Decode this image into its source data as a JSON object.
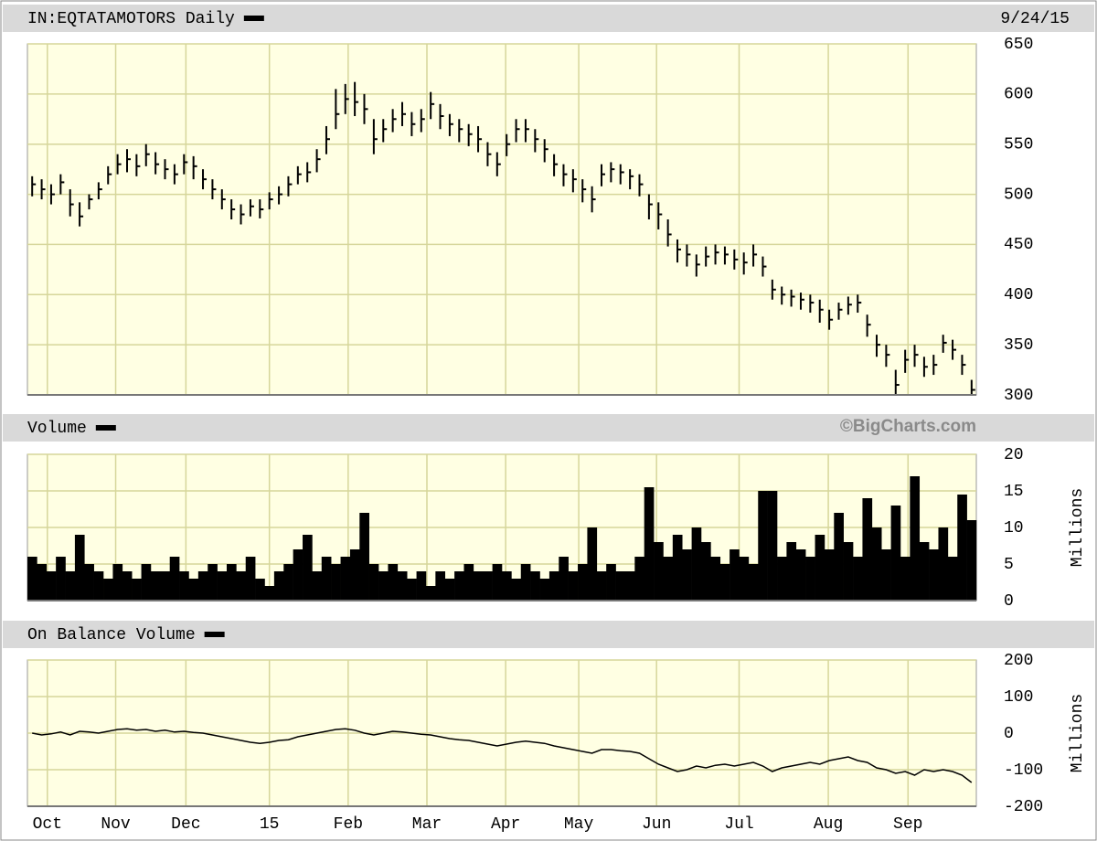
{
  "chart_data": [
    {
      "type": "hlc",
      "title": "IN:EQTATAMOTORS Daily",
      "date": "9/24/15",
      "color": "#000000",
      "grid": true,
      "ylim": [
        300,
        650
      ],
      "yticks": [
        300,
        350,
        400,
        450,
        500,
        550,
        600,
        650
      ],
      "high": [
        518,
        515,
        510,
        520,
        505,
        492,
        500,
        512,
        528,
        540,
        545,
        540,
        550,
        542,
        535,
        530,
        540,
        538,
        525,
        515,
        505,
        495,
        490,
        495,
        495,
        502,
        508,
        518,
        528,
        532,
        545,
        568,
        605,
        610,
        612,
        600,
        575,
        575,
        585,
        592,
        582,
        585,
        602,
        590,
        580,
        575,
        570,
        568,
        552,
        542,
        560,
        575,
        575,
        565,
        555,
        540,
        530,
        525,
        515,
        508,
        530,
        532,
        530,
        525,
        520,
        500,
        492,
        475,
        455,
        450,
        440,
        448,
        450,
        448,
        445,
        442,
        450,
        438,
        415,
        408,
        405,
        402,
        400,
        395,
        385,
        392,
        398,
        400,
        380,
        360,
        350,
        325,
        345,
        350,
        338,
        340,
        360,
        355,
        340,
        315
      ],
      "low": [
        498,
        495,
        490,
        500,
        478,
        468,
        485,
        495,
        510,
        520,
        522,
        518,
        528,
        520,
        515,
        510,
        520,
        515,
        505,
        495,
        485,
        475,
        470,
        478,
        476,
        485,
        490,
        498,
        510,
        512,
        522,
        540,
        565,
        580,
        578,
        570,
        540,
        552,
        562,
        568,
        558,
        562,
        575,
        565,
        558,
        552,
        548,
        542,
        528,
        518,
        538,
        552,
        552,
        542,
        532,
        518,
        508,
        502,
        492,
        482,
        508,
        512,
        510,
        505,
        498,
        475,
        465,
        448,
        432,
        428,
        418,
        428,
        430,
        430,
        425,
        420,
        428,
        418,
        395,
        390,
        388,
        385,
        382,
        372,
        365,
        375,
        380,
        382,
        358,
        338,
        328,
        300,
        322,
        328,
        318,
        320,
        342,
        335,
        320,
        300
      ],
      "close": [
        510,
        505,
        500,
        512,
        490,
        478,
        495,
        505,
        520,
        530,
        535,
        528,
        540,
        530,
        525,
        520,
        532,
        528,
        515,
        505,
        495,
        485,
        480,
        488,
        485,
        495,
        500,
        510,
        520,
        522,
        535,
        555,
        580,
        595,
        592,
        585,
        555,
        565,
        575,
        580,
        570,
        575,
        590,
        578,
        570,
        565,
        560,
        555,
        540,
        530,
        550,
        565,
        565,
        555,
        545,
        530,
        520,
        515,
        505,
        495,
        520,
        525,
        522,
        518,
        510,
        490,
        480,
        460,
        445,
        440,
        430,
        438,
        442,
        440,
        435,
        432,
        440,
        428,
        405,
        400,
        398,
        395,
        392,
        385,
        375,
        385,
        390,
        392,
        370,
        350,
        340,
        310,
        335,
        340,
        328,
        330,
        352,
        345,
        330,
        305
      ]
    },
    {
      "type": "bar",
      "title": "Volume",
      "annotation": "©BigCharts.com",
      "y_label": "Millions",
      "color": "#000000",
      "grid": true,
      "ylim": [
        0,
        20
      ],
      "yticks": [
        0,
        5,
        10,
        15,
        20
      ],
      "values": [
        6,
        5,
        4,
        6,
        4,
        9,
        5,
        4,
        3,
        5,
        4,
        3,
        5,
        4,
        4,
        6,
        4,
        3,
        4,
        5,
        4,
        5,
        4,
        6,
        3,
        2,
        4,
        5,
        7,
        9,
        4,
        6,
        5,
        6,
        7,
        12,
        5,
        4,
        5,
        4,
        3,
        4,
        2,
        4,
        3,
        4,
        5,
        4,
        4,
        5,
        4,
        3,
        5,
        4,
        3,
        4,
        6,
        4,
        5,
        10,
        4,
        5,
        4,
        4,
        6,
        15.5,
        8,
        6,
        9,
        7,
        10,
        8,
        6,
        5,
        7,
        6,
        5,
        15,
        15,
        6,
        8,
        7,
        6,
        9,
        7,
        12,
        8,
        6,
        14,
        10,
        7,
        13,
        6,
        17,
        8,
        7,
        10,
        6,
        14.5,
        11
      ]
    },
    {
      "type": "line",
      "title": "On Balance Volume",
      "y_label": "Millions",
      "color": "#000000",
      "grid": true,
      "ylim": [
        -200,
        200
      ],
      "yticks": [
        -200,
        -100,
        0,
        100,
        200
      ],
      "xlim": [
        -0.5,
        99.5
      ],
      "xticks": [
        {
          "value": 1.6,
          "label": "Oct"
        },
        {
          "value": 8.8,
          "label": "Nov"
        },
        {
          "value": 16.2,
          "label": "Dec"
        },
        {
          "value": 25,
          "label": "15"
        },
        {
          "value": 33.3,
          "label": "Feb"
        },
        {
          "value": 41.6,
          "label": "Mar"
        },
        {
          "value": 49.9,
          "label": "Apr"
        },
        {
          "value": 57.6,
          "label": "May"
        },
        {
          "value": 65.8,
          "label": "Jun"
        },
        {
          "value": 74.5,
          "label": "Jul"
        },
        {
          "value": 83.9,
          "label": "Aug"
        },
        {
          "value": 92.3,
          "label": "Sep"
        }
      ],
      "values": [
        0,
        -5,
        -2,
        3,
        -5,
        5,
        3,
        0,
        5,
        10,
        12,
        8,
        10,
        5,
        8,
        3,
        5,
        2,
        0,
        -5,
        -10,
        -15,
        -20,
        -25,
        -28,
        -25,
        -20,
        -18,
        -10,
        -5,
        0,
        5,
        10,
        12,
        8,
        0,
        -5,
        0,
        5,
        3,
        0,
        -3,
        -5,
        -10,
        -15,
        -18,
        -20,
        -25,
        -30,
        -35,
        -30,
        -25,
        -22,
        -25,
        -28,
        -35,
        -40,
        -45,
        -50,
        -55,
        -45,
        -45,
        -48,
        -50,
        -55,
        -70,
        -85,
        -95,
        -105,
        -100,
        -90,
        -95,
        -88,
        -85,
        -90,
        -85,
        -80,
        -90,
        -105,
        -95,
        -90,
        -85,
        -80,
        -85,
        -75,
        -70,
        -65,
        -75,
        -80,
        -95,
        -100,
        -110,
        -105,
        -115,
        -100,
        -105,
        -100,
        -105,
        -115,
        -135
      ]
    }
  ]
}
